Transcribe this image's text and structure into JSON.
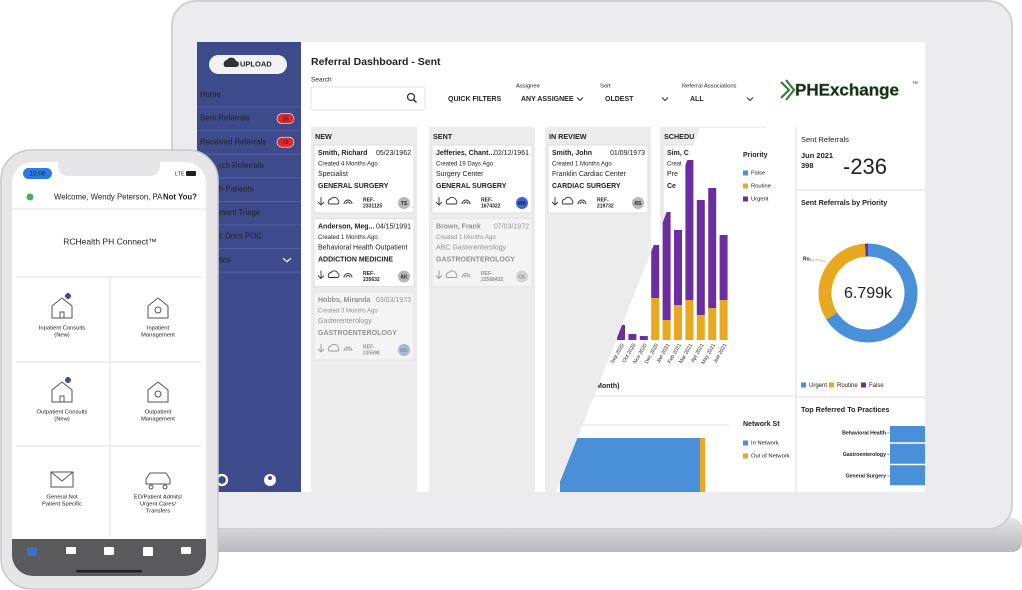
{
  "dashboard": {
    "upload": "UPLOAD",
    "menu": [
      {
        "label": "Home"
      },
      {
        "label": "Sent Referrals",
        "badge": "35"
      },
      {
        "label": "Received Referrals",
        "badge": "72"
      },
      {
        "label": "rch Referrals"
      },
      {
        "label": "h Patients"
      },
      {
        "label": "ment Triage"
      },
      {
        "label": "c Docs POC"
      },
      {
        "label": "tics"
      }
    ],
    "title": "Referral Dashboard - Sent",
    "search_label": "Search",
    "quick_filters": "QUICK FILTERS",
    "filters": [
      {
        "label": "Assignee",
        "value": "ANY ASSIGNEE"
      },
      {
        "label": "Sort",
        "value": "OLDEST"
      },
      {
        "label": "Referral Associations",
        "value": "ALL"
      }
    ],
    "logo": "PHExchange",
    "logo_tm": "™",
    "columns": [
      {
        "title": "NEW",
        "cards": [
          {
            "name": "Smith, Richard",
            "dob": "05/23/1962",
            "created": "Created 4 Months Ago",
            "facility": "Specialist",
            "specialty": "GENERAL SURGERY",
            "color": "#3f63b8",
            "ref_label": "REF-",
            "ref": "2331125",
            "avatar": "TS",
            "avatar_color": "#b8b8b8"
          },
          {
            "name": "Anderson, Meg...",
            "dob": "04/15/1991",
            "created": "Created 1 Months Ago",
            "facility": "Behavioral Health Outpatient",
            "specialty": "ADDICTION MEDICINE",
            "color": "#d9303a",
            "ref_label": "REF-",
            "ref": "235632",
            "avatar": "AK",
            "avatar_color": "#b8b8b8"
          },
          {
            "name": "Hobbs, Miranda",
            "dob": "03/03/1973",
            "created": "Created 3 Months Ago",
            "facility": "Gasterenterology",
            "specialty": "GASTROENTEROLOGY",
            "color": "#8a3fb8",
            "ref_label": "REF-",
            "ref": "235698",
            "avatar": "MK",
            "avatar_color": "#5a7ad0",
            "faded": true
          }
        ]
      },
      {
        "title": "SENT",
        "cards": [
          {
            "name": "Jefferies, Chant...",
            "dob": "02/12/1961",
            "created": "Created 19 Days Ago",
            "facility": "Surgery Center",
            "specialty": "GENERAL SURGERY",
            "color": "#3f63b8",
            "ref_label": "REF-",
            "ref": "1674322",
            "avatar": "WK",
            "avatar_color": "#3f63d0"
          },
          {
            "name": "Brown, Frank",
            "dob": "07/03/1972",
            "created": "Created 1 Months Ago",
            "facility": "ABC Gasterenterology",
            "specialty": "GASTROENTEROLOGY",
            "color": "#8a3fb8",
            "ref_label": "REF-",
            "ref": "22568432",
            "avatar": "CK",
            "avatar_color": "#b8b8b8",
            "faded": true
          }
        ]
      },
      {
        "title": "IN REVIEW",
        "cards": [
          {
            "name": "Smith, John",
            "dob": "01/09/1973",
            "created": "Created 1 Months Ago",
            "facility": "Franklin Cardiac Center",
            "specialty": "CARDIAC SURGERY",
            "color": "#8a3fb8",
            "ref_label": "REF-",
            "ref": "219732",
            "avatar": "RS",
            "avatar_color": "#b8b8b8"
          }
        ]
      },
      {
        "title": "SCHEDU",
        "cards": [
          {
            "name": "Sim, C",
            "created": "Creat",
            "facility": "Pre",
            "specialty": "Ce"
          }
        ]
      }
    ],
    "chart_data": {
      "type": "bar",
      "stacked": true,
      "legend_title": "Priority",
      "caption": "e (Month)",
      "categories": [
        "Sep 2020",
        "Oct 2020",
        "Nov 2020",
        "Dec 2020",
        "Jan 2021",
        "Feb 2021",
        "Mar 2021",
        "Apr 2021",
        "May 2021",
        "Jun 2021"
      ],
      "series": [
        {
          "name": "False",
          "color": "#4a90d9",
          "values": [
            0,
            0,
            0,
            0,
            0,
            0,
            0,
            0,
            0,
            0
          ]
        },
        {
          "name": "Routine",
          "color": "#e8a820",
          "values": [
            0,
            0,
            0,
            42,
            20,
            35,
            40,
            25,
            32,
            40
          ]
        },
        {
          "name": "Urgent",
          "color": "#6a2ea0",
          "values": [
            15,
            6,
            4,
            53,
            108,
            75,
            140,
            115,
            120,
            65
          ]
        }
      ],
      "stack_order": [
        1,
        2,
        0
      ]
    },
    "network": {
      "title": "Network St",
      "series": [
        {
          "name": "In Network",
          "color": "#4a90d9",
          "values": [
            140
          ]
        },
        {
          "name": "Out of Network",
          "color": "#e8a820",
          "values": [
            5
          ]
        }
      ]
    },
    "sent_referrals": {
      "title": "Sent Referrals",
      "period": "Jun 2021",
      "count": "398",
      "change": "-236"
    },
    "priority_donut": {
      "type": "pie",
      "title": "Sent Referrals by Priority",
      "center": "6.799k",
      "callout": "Ro...",
      "series": [
        {
          "name": "Urgent",
          "color": "#4a90d9",
          "value": 66
        },
        {
          "name": "Routine",
          "color": "#e8a820",
          "value": 33
        },
        {
          "name": "False",
          "color": "#6a2ea0",
          "value": 1
        }
      ]
    },
    "top_practices": {
      "title": "Top Referred To Practices",
      "labels": [
        "Behavioral Health",
        "Gastroenterology",
        "General Surgery"
      ]
    }
  },
  "phone": {
    "time": "10:06",
    "network": "LTE",
    "welcome": "Welcome, Wendy Peterson, PA",
    "not_you": "Not You?",
    "app_title": "RCHealth PH Connect™",
    "tiles": [
      {
        "lines": [
          "Inpatient Consults",
          "(New)"
        ]
      },
      {
        "lines": [
          "Inpatient",
          "Management"
        ]
      },
      {
        "lines": [
          "Outpatient Consults",
          "(New)"
        ]
      },
      {
        "lines": [
          "Outpatient",
          "Management"
        ]
      },
      {
        "lines": [
          "General Not",
          "Patient Specific"
        ]
      },
      {
        "lines": [
          "ED/Patient Admits/",
          "Urgent Cares/",
          "Transfers"
        ]
      }
    ]
  }
}
